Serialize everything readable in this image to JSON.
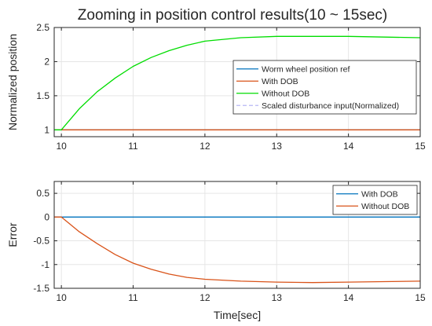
{
  "chart_data": [
    {
      "type": "line",
      "title": "Zooming in position control results(10 ~ 15sec)",
      "xlabel": "",
      "ylabel": "Normalized position",
      "xlim": [
        9.9,
        15
      ],
      "ylim": [
        0.9,
        2.5
      ],
      "xticks": [
        "10",
        "11",
        "12",
        "13",
        "14",
        "15"
      ],
      "yticks": [
        "1",
        "1.5",
        "2",
        "2.5"
      ],
      "grid": true,
      "legend_position": "right",
      "series": [
        {
          "name": "Worm wheel position ref",
          "color": "#0072BD",
          "x": [
            9.9,
            10,
            10.5,
            11,
            11.5,
            12,
            12.5,
            13,
            13.5,
            14,
            14.5,
            15
          ],
          "y": [
            1.0,
            1.0,
            1.0,
            1.0,
            1.0,
            1.0,
            1.0,
            1.0,
            1.0,
            1.0,
            1.0,
            1.0
          ]
        },
        {
          "name": "With DOB",
          "color": "#D95319",
          "x": [
            9.9,
            10,
            10.5,
            11,
            11.5,
            12,
            12.5,
            13,
            13.5,
            14,
            14.5,
            15
          ],
          "y": [
            1.0,
            1.0,
            1.0,
            1.0,
            1.0,
            1.0,
            1.0,
            1.0,
            1.0,
            1.0,
            1.0,
            1.0
          ]
        },
        {
          "name": "Without DOB",
          "color": "#00DD00",
          "x": [
            9.9,
            10,
            10.25,
            10.5,
            10.75,
            11,
            11.25,
            11.5,
            11.75,
            12,
            12.5,
            13,
            13.5,
            14,
            14.5,
            15
          ],
          "y": [
            1.0,
            1.0,
            1.31,
            1.56,
            1.76,
            1.93,
            2.06,
            2.16,
            2.24,
            2.3,
            2.35,
            2.37,
            2.37,
            2.37,
            2.36,
            2.35
          ]
        },
        {
          "name": "Scaled disturbance input(Normalized)",
          "color": "#B8B8F5",
          "dashed": true,
          "x": [],
          "y": []
        }
      ]
    },
    {
      "type": "line",
      "title": "",
      "xlabel": "Time[sec]",
      "ylabel": "Error",
      "xlim": [
        9.9,
        15
      ],
      "ylim": [
        -1.5,
        0.75
      ],
      "xticks": [
        "10",
        "11",
        "12",
        "13",
        "14",
        "15"
      ],
      "yticks": [
        "-1.5",
        "-1",
        "-0.5",
        "0",
        "0.5"
      ],
      "grid": true,
      "legend_position": "top-right",
      "series": [
        {
          "name": "With DOB",
          "color": "#0072BD",
          "x": [
            9.9,
            10,
            10.5,
            11,
            11.5,
            12,
            12.5,
            13,
            13.5,
            14,
            14.5,
            15
          ],
          "y": [
            0,
            0,
            0,
            0,
            0,
            0,
            0,
            0,
            0,
            0,
            0,
            0
          ]
        },
        {
          "name": "Without DOB",
          "color": "#D95319",
          "x": [
            9.9,
            10,
            10.25,
            10.5,
            10.75,
            11,
            11.25,
            11.5,
            11.75,
            12,
            12.5,
            13,
            13.5,
            14,
            14.5,
            15
          ],
          "y": [
            0,
            0,
            -0.31,
            -0.56,
            -0.79,
            -0.97,
            -1.1,
            -1.2,
            -1.27,
            -1.31,
            -1.35,
            -1.37,
            -1.38,
            -1.37,
            -1.36,
            -1.35
          ]
        }
      ]
    }
  ]
}
